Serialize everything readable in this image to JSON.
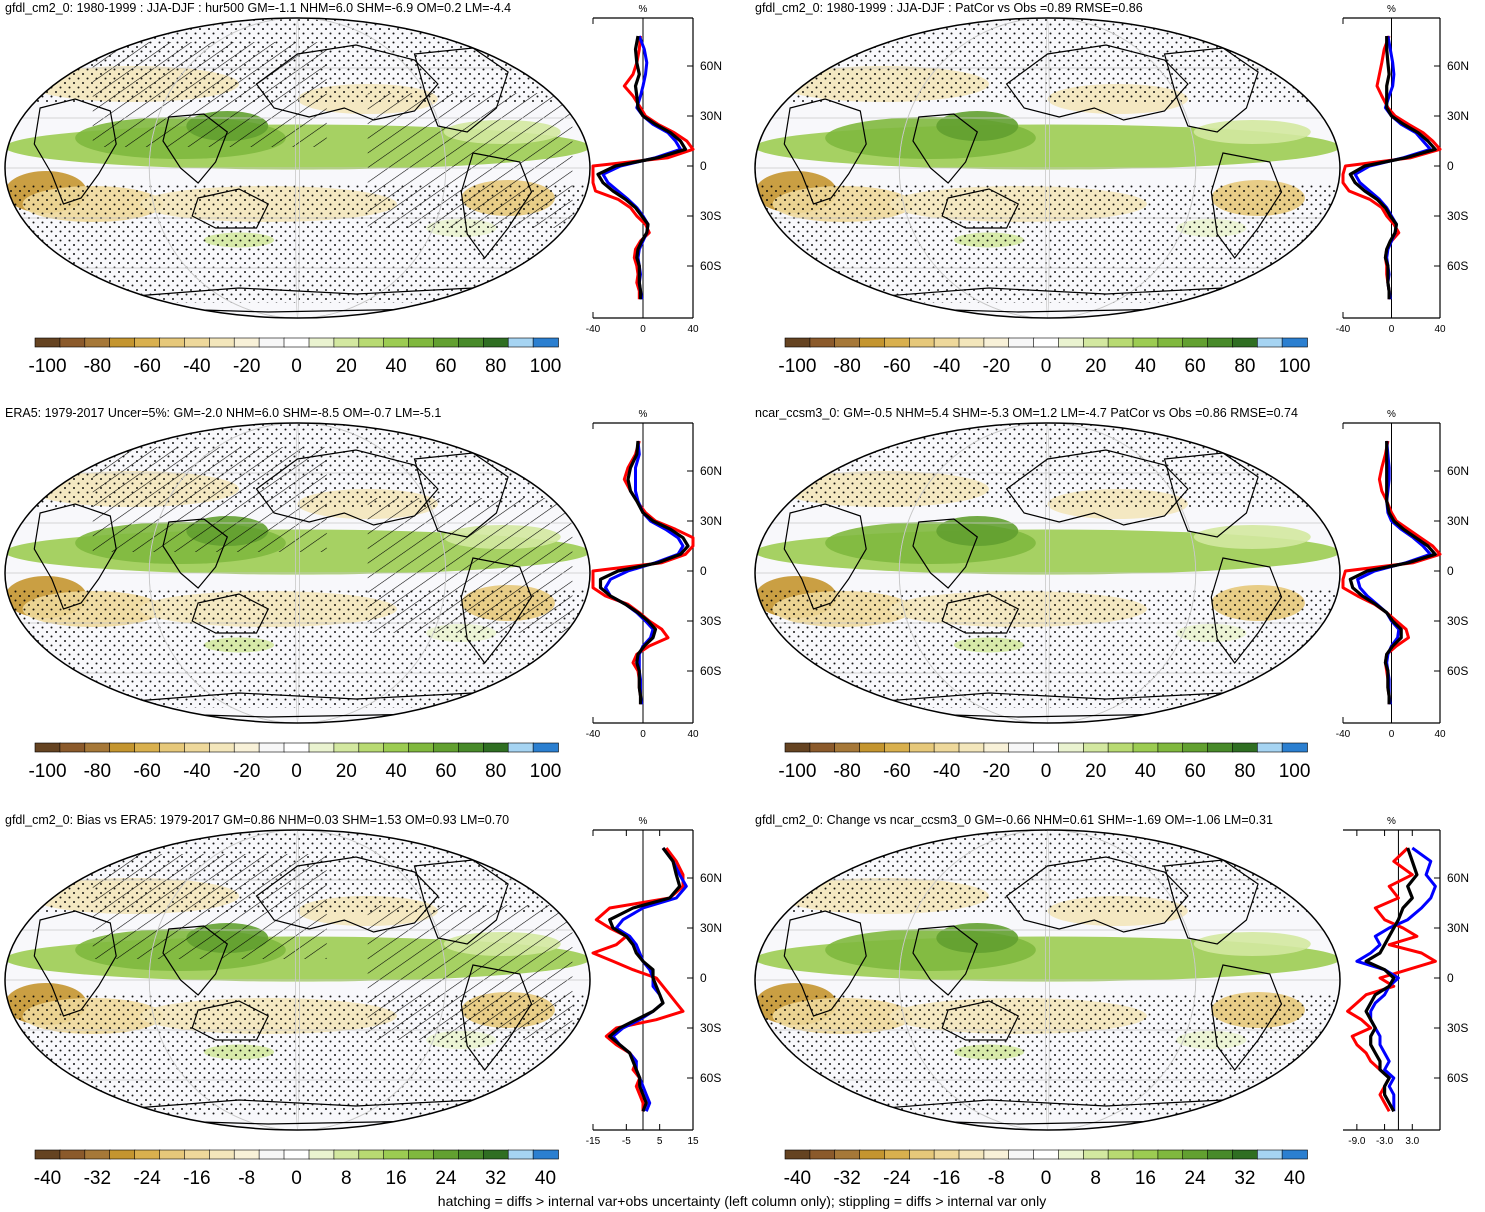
{
  "footer": "hatching = diffs > internal var+obs uncertainty (left column only); stippling = diffs > internal var only",
  "colors": {
    "neg": [
      "#654321",
      "#8b5a2b",
      "#a67838",
      "#c4952f",
      "#d9b04e",
      "#e6c87a",
      "#eed89b",
      "#f3e6bb",
      "#f8f1d8"
    ],
    "mid": [
      "#f7f7f7",
      "#ffffff"
    ],
    "pos": [
      "#eaf3d0",
      "#d3e8a0",
      "#b8da72",
      "#9ccc52",
      "#80b83e",
      "#62a030",
      "#488a2a",
      "#2f6e22",
      "#a6d4f2",
      "#2b7fd0"
    ],
    "red": "#ff0000",
    "blue": "#0000ff",
    "black": "#000000"
  },
  "panels": [
    {
      "title": "gfdl_cm2_0: 1980-1999 : JJA-DJF : hur500 GM=-1.1 NHM=6.0 SHM=-6.9 OM=0.2 LM=-4.4",
      "colorbar_labels": [
        "-100",
        "-80",
        "-60",
        "-40",
        "-20",
        "0",
        "20",
        "40",
        "60",
        "80",
        "100"
      ],
      "profile": {
        "unit": "%",
        "lat_labels": [
          "60N",
          "30N",
          "0",
          "30S",
          "60S"
        ],
        "x_tick_labels": [
          "-40",
          "0",
          "40"
        ],
        "xlim": [
          -40,
          40
        ],
        "lat": [
          78,
          70,
          62,
          55,
          48,
          42,
          35,
          30,
          25,
          20,
          15,
          10,
          5,
          0,
          -5,
          -10,
          -15,
          -20,
          -25,
          -30,
          -35,
          -40,
          -45,
          -50,
          -55,
          -60,
          -65,
          -70,
          -75,
          -80
        ],
        "series": [
          {
            "color": "red",
            "values": [
              -2,
              -3,
              -5,
              -8,
              -15,
              -8,
              -2,
              2,
              12,
              25,
              35,
              42,
              20,
              -40,
              -55,
              -65,
              -38,
              -20,
              -10,
              -5,
              2,
              5,
              -2,
              -6,
              -7,
              -5,
              -4,
              -5,
              -3,
              -3
            ]
          },
          {
            "color": "blue",
            "values": [
              -3,
              1,
              3,
              2,
              0,
              -2,
              -5,
              0,
              8,
              20,
              26,
              30,
              10,
              -18,
              -32,
              -28,
              -20,
              -12,
              -5,
              0,
              4,
              3,
              0,
              -3,
              -4,
              -3,
              -2,
              -3,
              -2,
              -1
            ]
          },
          {
            "color": "black",
            "values": [
              -4,
              -6,
              -5,
              -3,
              -6,
              -5,
              -4,
              0,
              10,
              22,
              30,
              34,
              12,
              -22,
              -36,
              -32,
              -24,
              -14,
              -6,
              -1,
              4,
              3,
              -1,
              -4,
              -5,
              -3,
              -3,
              -3,
              -2,
              -2
            ]
          }
        ]
      }
    },
    {
      "title": "gfdl_cm2_0: 1980-1999 : JJA-DJF : PatCor vs Obs =0.89 RMSE=0.86",
      "colorbar_labels": [
        "-100",
        "-80",
        "-60",
        "-40",
        "-20",
        "0",
        "20",
        "40",
        "60",
        "80",
        "100"
      ],
      "profile": {
        "unit": "%",
        "lat_labels": [
          "60N",
          "30N",
          "0",
          "30S",
          "60S"
        ],
        "x_tick_labels": [
          "-40",
          "0",
          "40"
        ],
        "xlim": [
          -40,
          40
        ],
        "lat": [
          78,
          70,
          62,
          55,
          48,
          42,
          35,
          30,
          25,
          20,
          15,
          10,
          5,
          0,
          -5,
          -10,
          -15,
          -20,
          -25,
          -30,
          -35,
          -40,
          -45,
          -50,
          -55,
          -60,
          -65,
          -70,
          -75,
          -80
        ],
        "series": [
          {
            "color": "red",
            "values": [
              -2,
              -6,
              -8,
              -10,
              -12,
              -8,
              -3,
              3,
              14,
              26,
              34,
              40,
              16,
              -38,
              -52,
              -58,
              -35,
              -18,
              -8,
              -4,
              2,
              6,
              0,
              -4,
              -5,
              -4,
              -4,
              -3,
              -2,
              -2
            ]
          },
          {
            "color": "blue",
            "values": [
              -3,
              -1,
              1,
              2,
              1,
              -2,
              -5,
              0,
              8,
              20,
              26,
              32,
              10,
              -18,
              -30,
              -26,
              -18,
              -10,
              -4,
              0,
              4,
              3,
              0,
              -3,
              -4,
              -3,
              -2,
              -3,
              -2,
              -1
            ]
          },
          {
            "color": "black",
            "values": [
              -4,
              -4,
              -3,
              -2,
              -4,
              -4,
              -4,
              0,
              10,
              22,
              30,
              36,
              12,
              -22,
              -34,
              -30,
              -22,
              -12,
              -5,
              -1,
              4,
              3,
              -1,
              -4,
              -5,
              -3,
              -3,
              -3,
              -2,
              -2
            ]
          }
        ]
      }
    },
    {
      "title": "ERA5: 1979-2017 Uncer=5%: GM=-2.0 NHM=6.0 SHM=-8.5 OM=-0.7 LM=-5.1",
      "colorbar_labels": [
        "-100",
        "-80",
        "-60",
        "-40",
        "-20",
        "0",
        "20",
        "40",
        "60",
        "80",
        "100"
      ],
      "profile": {
        "unit": "%",
        "lat_labels": [
          "60N",
          "30N",
          "0",
          "30S",
          "60S"
        ],
        "x_tick_labels": [
          "-40",
          "0",
          "40"
        ],
        "xlim": [
          -40,
          40
        ],
        "lat": [
          78,
          70,
          62,
          55,
          48,
          42,
          35,
          30,
          25,
          20,
          15,
          10,
          5,
          0,
          -5,
          -10,
          -15,
          -20,
          -25,
          -30,
          -35,
          -40,
          -45,
          -50,
          -55,
          -60,
          -65,
          -70,
          -75,
          -80
        ],
        "series": [
          {
            "color": "red",
            "values": [
              -3,
              -6,
              -12,
              -15,
              -10,
              -5,
              2,
              10,
              26,
              40,
              45,
              34,
              15,
              -40,
              -55,
              -45,
              -30,
              -12,
              -3,
              5,
              15,
              20,
              5,
              -5,
              -8,
              -4,
              -3,
              -3,
              -2,
              -2
            ]
          },
          {
            "color": "blue",
            "values": [
              -4,
              -3,
              -6,
              -6,
              -6,
              -4,
              0,
              6,
              18,
              28,
              32,
              28,
              10,
              -12,
              -26,
              -30,
              -26,
              -14,
              -5,
              2,
              8,
              6,
              0,
              -3,
              -3,
              -3,
              -2,
              -2,
              -2,
              -1
            ]
          },
          {
            "color": "black",
            "values": [
              -4,
              -5,
              -10,
              -12,
              -10,
              -5,
              0,
              8,
              22,
              32,
              36,
              30,
              12,
              -20,
              -34,
              -34,
              -26,
              -14,
              -4,
              4,
              10,
              8,
              1,
              -4,
              -5,
              -3,
              -3,
              -3,
              -2,
              -2
            ]
          }
        ]
      }
    },
    {
      "title": "ncar_ccsm3_0: GM=-0.5 NHM=5.4 SHM=-5.3 OM=1.2 LM=-4.7 PatCor vs Obs =0.86 RMSE=0.74",
      "colorbar_labels": [
        "-100",
        "-80",
        "-60",
        "-40",
        "-20",
        "0",
        "20",
        "40",
        "60",
        "80",
        "100"
      ],
      "profile": {
        "unit": "%",
        "lat_labels": [
          "60N",
          "30N",
          "0",
          "30S",
          "60S"
        ],
        "x_tick_labels": [
          "-40",
          "0",
          "40"
        ],
        "xlim": [
          -40,
          40
        ],
        "lat": [
          78,
          70,
          62,
          55,
          48,
          42,
          35,
          30,
          25,
          20,
          15,
          10,
          5,
          0,
          -5,
          -10,
          -15,
          -20,
          -25,
          -30,
          -35,
          -40,
          -45,
          -50,
          -55,
          -60,
          -65,
          -70,
          -75,
          -80
        ],
        "series": [
          {
            "color": "red",
            "values": [
              -3,
              -5,
              -8,
              -10,
              -8,
              -4,
              0,
              4,
              14,
              24,
              34,
              40,
              18,
              -38,
              -52,
              -40,
              -28,
              -14,
              -4,
              4,
              12,
              14,
              4,
              -4,
              -5,
              -4,
              -3,
              -3,
              -2,
              -2
            ]
          },
          {
            "color": "blue",
            "values": [
              -4,
              -3,
              -2,
              -2,
              -3,
              -4,
              -3,
              0,
              8,
              18,
              26,
              32,
              12,
              -14,
              -28,
              -26,
              -20,
              -12,
              -4,
              0,
              6,
              5,
              0,
              -3,
              -4,
              -3,
              -2,
              -2,
              -2,
              -1
            ]
          },
          {
            "color": "black",
            "values": [
              -4,
              -4,
              -4,
              -4,
              -4,
              -4,
              -2,
              2,
              10,
              20,
              30,
              36,
              14,
              -20,
              -34,
              -32,
              -24,
              -13,
              -4,
              1,
              8,
              8,
              1,
              -4,
              -5,
              -3,
              -3,
              -3,
              -2,
              -2
            ]
          }
        ]
      }
    },
    {
      "title": "gfdl_cm2_0: Bias vs ERA5: 1979-2017 GM=0.86 NHM=0.03 SHM=1.53 OM=0.93 LM=0.70",
      "colorbar_labels": [
        "-40",
        "-32",
        "-24",
        "-16",
        "-8",
        "0",
        "8",
        "16",
        "24",
        "32",
        "40"
      ],
      "profile": {
        "unit": "%",
        "lat_labels": [
          "60N",
          "30N",
          "0",
          "30S",
          "60S"
        ],
        "x_tick_labels": [
          "-15",
          "-5",
          "5",
          "15"
        ],
        "xlim": [
          -15,
          15
        ],
        "lat": [
          78,
          70,
          62,
          55,
          48,
          42,
          35,
          30,
          25,
          20,
          15,
          10,
          5,
          0,
          -5,
          -10,
          -15,
          -20,
          -25,
          -30,
          -35,
          -40,
          -45,
          -50,
          -55,
          -60,
          -65,
          -70,
          -75,
          -80
        ],
        "series": [
          {
            "color": "red",
            "values": [
              7,
              10,
              12,
              12,
              8,
              -10,
              -14,
              -10,
              -5,
              -8,
              -15,
              -9,
              -3,
              4,
              6,
              8,
              10,
              12,
              4,
              -8,
              -11,
              -8,
              -4,
              -2,
              -3,
              -1,
              -2,
              -1,
              0,
              0
            ]
          },
          {
            "color": "blue",
            "values": [
              6,
              9,
              11,
              13,
              10,
              0,
              -6,
              -8,
              -4,
              -2,
              -1,
              0,
              2,
              3,
              3,
              5,
              6,
              3,
              -1,
              -6,
              -9,
              -7,
              -4,
              -2,
              -2,
              -1,
              0,
              1,
              2,
              1
            ]
          },
          {
            "color": "black",
            "values": [
              6,
              9,
              10,
              11,
              8,
              -3,
              -10,
              -9,
              -5,
              -3,
              -2,
              0,
              3,
              3,
              4,
              5,
              6,
              3,
              -2,
              -7,
              -10,
              -7,
              -4,
              -3,
              -2,
              -1,
              -1,
              0,
              1,
              0
            ]
          }
        ]
      }
    },
    {
      "title": "gfdl_cm2_0: Change vs ncar_ccsm3_0 GM=-0.66 NHM=0.61 SHM=-1.69 OM=-1.06 LM=0.31",
      "colorbar_labels": [
        "-40",
        "-32",
        "-24",
        "-16",
        "-8",
        "0",
        "8",
        "16",
        "24",
        "32",
        "40"
      ],
      "profile": {
        "unit": "%",
        "lat_labels": [
          "60N",
          "30N",
          "0",
          "30S",
          "60S"
        ],
        "x_tick_labels": [
          "-9.0",
          "-3.0",
          "3.0"
        ],
        "xlim": [
          -12,
          9
        ],
        "lat": [
          78,
          70,
          62,
          55,
          48,
          42,
          35,
          30,
          25,
          20,
          15,
          10,
          5,
          0,
          -5,
          -10,
          -15,
          -20,
          -25,
          -30,
          -35,
          -40,
          -45,
          -50,
          -55,
          -60,
          -65,
          -70,
          -75,
          -80
        ],
        "series": [
          {
            "color": "red",
            "values": [
              2,
              -1,
              3,
              -2,
              0,
              -5,
              -3,
              1,
              4,
              -2,
              5,
              8,
              2,
              -4,
              -1,
              -7,
              -9,
              -11,
              -8,
              -6,
              -10,
              -9,
              -7,
              -6,
              -4,
              -2,
              -3,
              -4,
              -3,
              -2
            ]
          },
          {
            "color": "blue",
            "values": [
              3,
              7,
              6,
              8,
              7,
              5,
              2,
              -2,
              -5,
              -4,
              -6,
              -9,
              -3,
              0,
              -2,
              -3,
              -5,
              -6,
              -6,
              -5,
              -4,
              -4,
              -3,
              -2,
              -3,
              -1,
              -2,
              -1,
              -1,
              -1
            ]
          },
          {
            "color": "black",
            "values": [
              2,
              3,
              4,
              2,
              3,
              1,
              0,
              -1,
              -2,
              -3,
              -4,
              -7,
              -3,
              -1,
              -2,
              -5,
              -6,
              -7,
              -6,
              -5,
              -6,
              -6,
              -5,
              -4,
              -4,
              -2,
              -3,
              -3,
              -2,
              -1
            ]
          }
        ]
      }
    }
  ]
}
